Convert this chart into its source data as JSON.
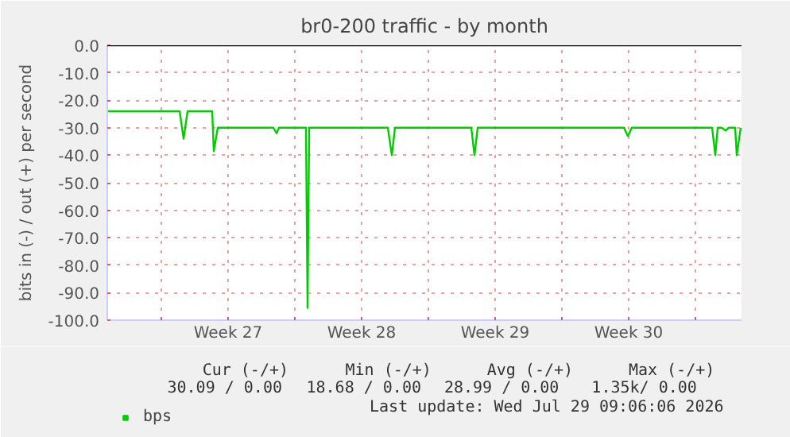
{
  "chart_data": {
    "type": "line",
    "title": "br0-200 traffic - by month",
    "ylabel": "bits in (-) / out (+) per second",
    "x": [
      "2026-06-26T04:00",
      "2026-06-27T04:00",
      "2026-06-28T04:00",
      "2026-06-29T04:00",
      "2026-06-29T23:00",
      "2026-06-30T04:00",
      "2026-06-30T09:00",
      "2026-07-01T04:00",
      "2026-07-01T16:00",
      "2026-07-01T18:00",
      "2026-07-01T23:00",
      "2026-07-03T04:00",
      "2026-07-04T21:00",
      "2026-07-05T01:00",
      "2026-07-05T04:00",
      "2026-07-06T11:00",
      "2026-07-06T14:00",
      "2026-07-06T16:00",
      "2026-07-06T18:00",
      "2026-07-06T23:00",
      "2026-07-08T04:00",
      "2026-07-10T21:00",
      "2026-07-11T02:00",
      "2026-07-11T06:00",
      "2026-07-13T04:00",
      "2026-07-15T06:00",
      "2026-07-15T10:00",
      "2026-07-15T14:00",
      "2026-07-18T04:00",
      "2026-07-21T04:00",
      "2026-07-23T06:00",
      "2026-07-23T11:00",
      "2026-07-23T16:00",
      "2026-07-26T04:00",
      "2026-07-27T21:00",
      "2026-07-28T01:00",
      "2026-07-28T04:00",
      "2026-07-28T09:00",
      "2026-07-28T14:00",
      "2026-07-28T18:00",
      "2026-07-29T02:00",
      "2026-07-29T04:00",
      "2026-07-29T09:00"
    ],
    "series": [
      {
        "name": "bps",
        "color": "#00cc00",
        "values": [
          -24,
          -24,
          -24,
          -24,
          -24,
          -34,
          -24,
          -24,
          -24,
          -38.5,
          -30,
          -30,
          -30,
          -32,
          -30,
          -30,
          -30,
          -95.5,
          -30,
          -30,
          -30,
          -30,
          -40,
          -30,
          -30,
          -30,
          -40,
          -30,
          -30,
          -30,
          -30,
          -33,
          -30,
          -30,
          -30,
          -40,
          -30,
          -30,
          -31,
          -30,
          -30,
          -40,
          -30
        ]
      }
    ],
    "xlim": [
      "2026-06-26T04:00",
      "2026-07-29T10:00"
    ],
    "xticks": [
      {
        "value": "2026-06-29",
        "label": null
      },
      {
        "value": "2026-07-02T12:00",
        "label": "Week 27"
      },
      {
        "value": "2026-07-06",
        "label": null
      },
      {
        "value": "2026-07-09T12:00",
        "label": "Week 28"
      },
      {
        "value": "2026-07-13",
        "label": null
      },
      {
        "value": "2026-07-16T12:00",
        "label": "Week 29"
      },
      {
        "value": "2026-07-20",
        "label": null
      },
      {
        "value": "2026-07-23T12:00",
        "label": "Week 30"
      },
      {
        "value": "2026-07-27",
        "label": null
      }
    ],
    "ylim": [
      -100,
      0
    ],
    "yticks": [
      {
        "value": 0,
        "label": "0.0"
      },
      {
        "value": -10,
        "label": "-10.0"
      },
      {
        "value": -20,
        "label": "-20.0"
      },
      {
        "value": -30,
        "label": "-30.0"
      },
      {
        "value": -40,
        "label": "-40.0"
      },
      {
        "value": -50,
        "label": "-50.0"
      },
      {
        "value": -60,
        "label": "-60.0"
      },
      {
        "value": -70,
        "label": "-70.0"
      },
      {
        "value": -80,
        "label": "-80.0"
      },
      {
        "value": -90,
        "label": "-90.0"
      },
      {
        "value": -100,
        "label": "-100.0"
      }
    ],
    "ref_lines": [
      {
        "axis": "y",
        "value": 0,
        "color": "#000000"
      }
    ],
    "grid": true,
    "legend": "bottom left",
    "line_style": "solid",
    "marker": "none",
    "annotations": [
      "Cur (-/+)",
      "Min (-/+)",
      "Avg (-/+)",
      "Max (-/+)",
      "30.09 /   0.00",
      "18.68 /   0.00",
      "28.99 /   0.00",
      "1.35k/   0.00",
      "Last update: Wed Jul 29 09:06:06 2026"
    ]
  }
}
